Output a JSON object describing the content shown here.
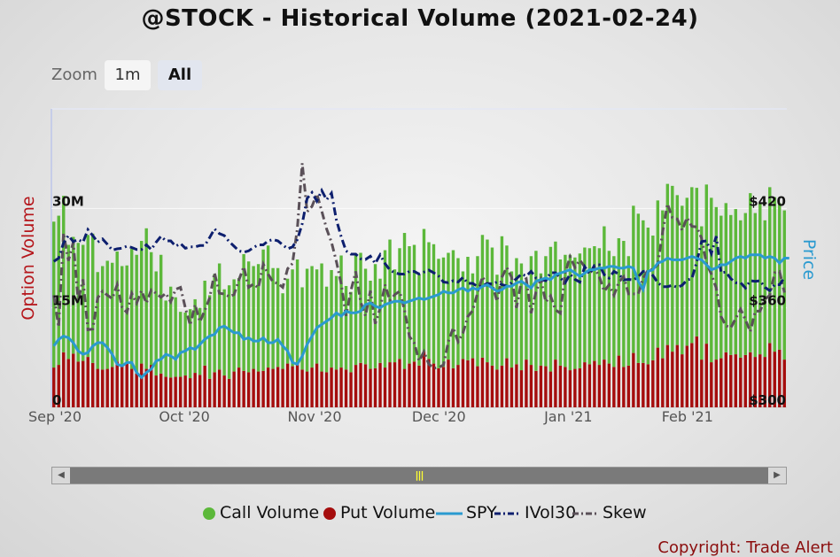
{
  "title": "@STOCK - Historical Volume (2021-02-24)",
  "zoom": {
    "label": "Zoom",
    "buttons": [
      "1m",
      "All"
    ],
    "active": "All"
  },
  "copyright": "Copyright: Trade Alert",
  "colors": {
    "call": "#5cb83a",
    "put": "#a50d0d",
    "spy": "#2a9ad0",
    "ivol": "#0d1f6e",
    "skew": "#5a5058",
    "price_axis": "#2a9ad0",
    "volume_axis": "#b5161b"
  },
  "chart_data": {
    "type": "bar",
    "left_axis": {
      "label": "Option Volume",
      "ticks": [
        "0",
        "15M",
        "30M"
      ],
      "tick_values": [
        0,
        15000000,
        30000000
      ],
      "range": [
        0,
        45000000
      ]
    },
    "right_axis": {
      "label": "Price",
      "ticks": [
        "$300",
        "$360",
        "$420"
      ],
      "tick_values": [
        300,
        360,
        420
      ],
      "range": [
        300,
        480
      ]
    },
    "x_labels": [
      "Sep '20",
      "Oct '20",
      "Nov '20",
      "Dec '20",
      "Jan '21",
      "Feb '21"
    ],
    "legend": [
      "Call Volume",
      "Put Volume",
      "SPY",
      "IVol30",
      "Skew"
    ],
    "series": [
      {
        "name": "Call Volume",
        "kind": "bar",
        "values": [
          22.0,
          22.5,
          23.6,
          17.2,
          17.6,
          17.9,
          17.5,
          18.4,
          19.5,
          14.6,
          15.6,
          16.3,
          15.7,
          16.6,
          15.0,
          14.8,
          18.1,
          17.9,
          18.5,
          21.2,
          17.0,
          15.7,
          17.9,
          11.5,
          13.7,
          12.0,
          9.8,
          9.5,
          10.4,
          11.1,
          10.1,
          12.8,
          12.6,
          14.8,
          16.0,
          13.0,
          14.1,
          13.9,
          13.5,
          17.6,
          16.7,
          15.5,
          16.2,
          18.3,
          18.4,
          15.2,
          14.9,
          11.4,
          12.8,
          14.6,
          15.6,
          12.4,
          15.5,
          15.3,
          14.2,
          16.3,
          12.9,
          14.7,
          14.1,
          16.9,
          12.6,
          12.1,
          16.6,
          16.6,
          14.4,
          13.3,
          15.7,
          12.7,
          17.7,
          18.5,
          14.0,
          16.7,
          20.5,
          17.7,
          17.6,
          13.7,
          18.5,
          17.6,
          18.0,
          16.5,
          16.5,
          16.1,
          17.8,
          16.1,
          13.2,
          15.6,
          12.8,
          16.6,
          18.5,
          18.5,
          17.8,
          14.3,
          19.5,
          17.0,
          14.5,
          16.0,
          16.1,
          11.7,
          16.4,
          18.1,
          13.9,
          16.6,
          18.8,
          17.8,
          16.0,
          16.9,
          17.4,
          16.8,
          17.3,
          17.3,
          17.5,
          17.3,
          17.6,
          20.1,
          17.0,
          16.7,
          17.7,
          19.0,
          16.5,
          22.2,
          22.5,
          21.5,
          20.6,
          18.8,
          22.2,
          22.3,
          24.3,
          25.0,
          22.6,
          22.4,
          22.3,
          23.5,
          22.4,
          20.1,
          24.0,
          24.8,
          23.0,
          21.5,
          22.5,
          21.1,
          21.9,
          20.7,
          21.4,
          24.0,
          21.7,
          22.8,
          20.6,
          23.5,
          23.3,
          22.1,
          22.5
        ]
      },
      {
        "name": "Put Volume",
        "kind": "bar",
        "values": [
          6.0,
          6.4,
          8.3,
          7.3,
          8.1,
          6.9,
          7.0,
          7.6,
          6.7,
          5.8,
          5.7,
          5.8,
          6.1,
          6.9,
          6.3,
          6.6,
          5.8,
          5.1,
          6.6,
          5.8,
          6.4,
          4.8,
          5.1,
          4.6,
          4.5,
          4.6,
          4.6,
          4.8,
          4.4,
          5.2,
          4.9,
          6.3,
          4.3,
          5.3,
          5.7,
          4.8,
          4.3,
          5.4,
          6.0,
          5.5,
          5.3,
          5.8,
          5.4,
          5.5,
          6.0,
          5.8,
          6.1,
          5.8,
          6.6,
          6.2,
          6.7,
          5.7,
          5.4,
          6.0,
          6.6,
          5.4,
          5.3,
          6.0,
          5.7,
          6.0,
          5.7,
          5.3,
          6.4,
          6.7,
          6.5,
          5.8,
          5.9,
          6.7,
          6.0,
          6.8,
          6.8,
          7.3,
          5.8,
          6.6,
          6.9,
          6.3,
          8.4,
          7.3,
          6.6,
          5.9,
          6.1,
          7.2,
          5.9,
          6.4,
          7.3,
          7.1,
          7.4,
          6.2,
          7.5,
          6.8,
          6.3,
          5.7,
          6.3,
          7.4,
          6.0,
          6.5,
          5.6,
          7.2,
          6.4,
          5.5,
          6.3,
          6.2,
          5.4,
          7.2,
          6.3,
          6.1,
          5.6,
          5.8,
          5.9,
          6.8,
          6.5,
          7.0,
          6.4,
          7.2,
          6.6,
          6.1,
          7.8,
          6.1,
          6.3,
          8.2,
          6.7,
          6.7,
          6.5,
          7.1,
          9.0,
          7.4,
          9.4,
          8.4,
          9.4,
          8.0,
          9.3,
          9.7,
          10.7,
          7.2,
          9.6,
          6.8,
          7.2,
          7.4,
          8.3,
          7.9,
          8.0,
          7.5,
          7.9,
          8.3,
          7.6,
          8.0,
          7.6,
          9.7,
          8.4,
          8.7,
          7.2
        ]
      },
      {
        "name": "SPY",
        "kind": "line",
        "values": [
          337,
          341,
          343,
          342,
          339,
          334,
          332,
          333,
          337,
          339,
          339,
          336,
          332,
          326,
          325,
          327,
          327,
          321,
          318,
          321,
          323,
          328,
          329,
          332,
          331,
          329,
          333,
          334,
          336,
          335,
          338,
          341,
          343,
          344,
          348,
          349,
          347,
          345,
          345,
          341,
          342,
          340,
          340,
          342,
          339,
          339,
          341,
          337,
          334,
          327,
          326,
          331,
          338,
          343,
          348,
          350,
          352,
          354,
          357,
          355,
          358,
          357,
          357,
          358,
          362,
          363,
          361,
          360,
          362,
          363,
          364,
          364,
          363,
          364,
          365,
          366,
          365,
          366,
          367,
          368,
          370,
          369,
          369,
          371,
          372,
          370,
          372,
          371,
          373,
          374,
          372,
          370,
          371,
          373,
          373,
          375,
          376,
          374,
          372,
          376,
          377,
          378,
          377,
          380,
          381,
          382,
          383,
          381,
          379,
          381,
          383,
          383,
          384,
          384,
          385,
          385,
          384,
          384,
          385,
          384,
          376,
          371,
          382,
          383,
          387,
          388,
          390,
          389,
          389,
          389,
          390,
          391,
          390,
          389,
          386,
          383,
          384,
          386,
          386,
          388,
          390,
          391,
          390,
          392,
          392,
          392,
          390,
          391,
          390,
          387,
          390,
          390
        ]
      },
      {
        "name": "IVol30",
        "kind": "line",
        "values": [
          22.0,
          22.5,
          24.8,
          25.9,
          25.0,
          25.3,
          24.9,
          26.8,
          25.9,
          24.9,
          25.4,
          24.6,
          23.7,
          23.9,
          24.0,
          24.3,
          24.1,
          23.8,
          23.8,
          24.5,
          23.8,
          24.9,
          25.8,
          25.1,
          25.1,
          24.3,
          24.7,
          24.0,
          24.2,
          24.2,
          24.4,
          24.4,
          25.6,
          26.9,
          26.2,
          25.9,
          25.0,
          24.3,
          23.6,
          23.4,
          23.6,
          24.1,
          24.5,
          24.5,
          25.1,
          25.3,
          25.1,
          24.5,
          23.9,
          24.2,
          25.3,
          27.7,
          31.5,
          32.4,
          31.1,
          32.7,
          31.3,
          32.3,
          28.3,
          25.7,
          23.6,
          23.1,
          23.1,
          22.4,
          22.3,
          22.8,
          21.7,
          23.0,
          21.7,
          20.7,
          20.3,
          20.1,
          20.1,
          20.5,
          20.5,
          20.1,
          20.4,
          20.7,
          20.3,
          19.8,
          18.9,
          18.8,
          19.1,
          18.9,
          19.6,
          18.7,
          18.7,
          18.2,
          18.3,
          18.7,
          18.6,
          18.9,
          18.5,
          18.3,
          18.8,
          19.4,
          20.1,
          19.8,
          20.5,
          19.5,
          19.3,
          19.1,
          20.3,
          20.3,
          19.5,
          18.8,
          20.1,
          19.3,
          18.9,
          21.2,
          20.1,
          21.4,
          21.5,
          20.0,
          19.5,
          20.5,
          20.1,
          19.2,
          19.3,
          19.2,
          19.7,
          20.5,
          20.6,
          19.9,
          18.8,
          18.2,
          18.2,
          18.4,
          18.1,
          18.4,
          19.2,
          19.4,
          21.9,
          25.0,
          25.1,
          23.2,
          25.8,
          20.3,
          20.4,
          19.4,
          18.8,
          18.8,
          18.0,
          19.1,
          19.0,
          19.1,
          18.1,
          17.6,
          18.5,
          18.5,
          19.6
        ]
      },
      {
        "name": "Skew",
        "kind": "line",
        "values": [
          16.9,
          12.1,
          26.3,
          22.1,
          24.9,
          16.1,
          19.3,
          11.7,
          11.8,
          16.5,
          17.5,
          16.9,
          16.4,
          18.5,
          15.1,
          14.3,
          17.2,
          15.7,
          17.6,
          15.7,
          17.7,
          17.2,
          16.6,
          17.2,
          15.9,
          17.8,
          18.1,
          15.0,
          12.4,
          15.5,
          12.9,
          14.6,
          16.5,
          20.3,
          17.2,
          17.1,
          16.7,
          17.0,
          19.2,
          21.2,
          18.1,
          18.6,
          18.0,
          21.6,
          20.1,
          18.9,
          18.7,
          18.1,
          20.9,
          21.7,
          27.0,
          36.8,
          29.5,
          30.3,
          32.2,
          29.6,
          26.9,
          24.9,
          22.0,
          18.6,
          13.8,
          17.6,
          20.5,
          15.9,
          13.8,
          17.6,
          12.6,
          14.9,
          18.5,
          16.1,
          17.0,
          17.5,
          14.7,
          10.7,
          9.7,
          7.0,
          8.4,
          6.5,
          5.9,
          6.0,
          6.4,
          9.9,
          12.0,
          9.9,
          11.2,
          13.7,
          14.6,
          17.3,
          19.7,
          18.4,
          18.6,
          16.0,
          19.6,
          21.1,
          19.6,
          15.0,
          19.0,
          19.4,
          14.2,
          17.4,
          19.3,
          15.9,
          16.8,
          14.7,
          14.2,
          20.3,
          22.7,
          21.1,
          22.2,
          21.2,
          20.2,
          21.1,
          19.7,
          17.5,
          18.5,
          16.9,
          18.9,
          19.7,
          17.1,
          17.1,
          17.1,
          19.5,
          20.7,
          20.8,
          21.5,
          26.4,
          30.7,
          28.6,
          28.4,
          26.7,
          28.6,
          27.3,
          27.2,
          25.5,
          21.7,
          20.1,
          18.0,
          13.7,
          12.3,
          12.0,
          13.4,
          14.8,
          13.2,
          11.4,
          14.5,
          14.5,
          16.3,
          16.9,
          20.3,
          20.5,
          17.3
        ]
      }
    ],
    "grid": true,
    "legend_position": "bottom"
  }
}
